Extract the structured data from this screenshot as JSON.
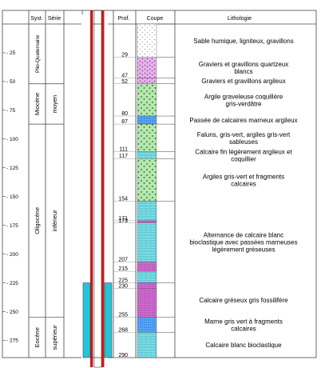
{
  "headers": {
    "syst": "Syst.",
    "serie": "Série",
    "prof": "Prof.",
    "coupe": "Coupe",
    "lithologie": "Lithologie"
  },
  "depth_ticks": [
    "- 25",
    "- 50",
    "- 75",
    "- 100",
    "- 125",
    "- 150",
    "- 175",
    "- 200",
    "- 225",
    "- 250",
    "- 275"
  ],
  "systems": [
    "Plio-Quaternaire",
    "Miocène",
    "Oligocène",
    "Eocène"
  ],
  "series": [
    "moyen",
    "inférieur",
    "supérieur"
  ],
  "profondeurs": [
    "29",
    "47",
    "52",
    "80",
    "87",
    "111",
    "117",
    "154",
    "171",
    "173",
    "207",
    "215",
    "225",
    "230",
    "255",
    "268",
    "290"
  ],
  "lithologie": [
    "Sable humique, ligniteux, gravillons",
    "Graviers et gravillons quartzeux blancs",
    "Graviers et gravillons argileux",
    "Argile graveleuse coquillère gris-verdâtre",
    "Passée de calcaires marneux argileux",
    "Faluns, gris-vert, argiles gris-vert sableuses",
    "Calcaire fin légèrement argileux et coquillier",
    "Argiles gris-vert et fragments calcaires",
    "Alternance de calcaire blanc bioclastique avec passées marneuses légèrement gréseuses",
    "Calcaire gréseux gris fossilifère",
    "Marne gris vert à fragments calcaires",
    "Calcaire blanc bioclastique"
  ],
  "colors": {
    "casing": "#c0201f",
    "screen": "#25c4d8",
    "sable": "#ffffff",
    "graviers": "#e6b3e9",
    "argile_verte": "#b7e7b1",
    "calcaire_cyan": "#8fe8ef",
    "marne_violet": "#d06cd0",
    "bleu": "#55aaff"
  }
}
